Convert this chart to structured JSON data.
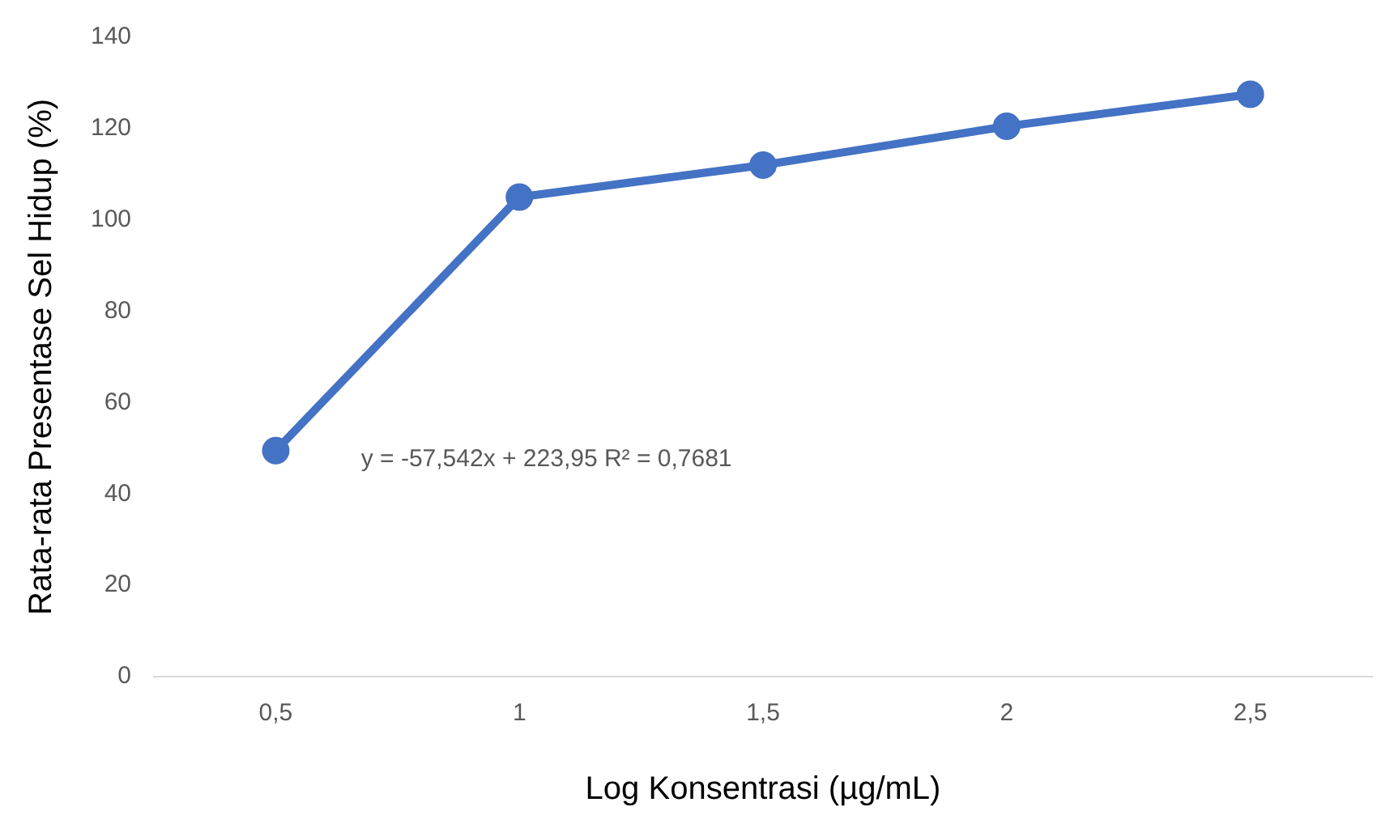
{
  "chart_data": {
    "type": "line",
    "xlabel": "Log Konsentrasi (µg/mL)",
    "ylabel": "Rata-rata Presentase Sel Hidup (%)",
    "categories": [
      "0,5",
      "1",
      "1,5",
      "2",
      "2,5"
    ],
    "series": [
      {
        "color": "#4472c4",
        "values": [
          49.5,
          105,
          112,
          120.5,
          127.5
        ]
      }
    ],
    "ylim": [
      0,
      140
    ],
    "yticks": [
      0,
      20,
      40,
      60,
      80,
      100,
      120,
      140
    ],
    "grid": false,
    "legend": false,
    "marker": "circle",
    "line_style": "solid",
    "annotations": [
      "y = -57,542x + 223,95 R² = 0,7681"
    ]
  }
}
